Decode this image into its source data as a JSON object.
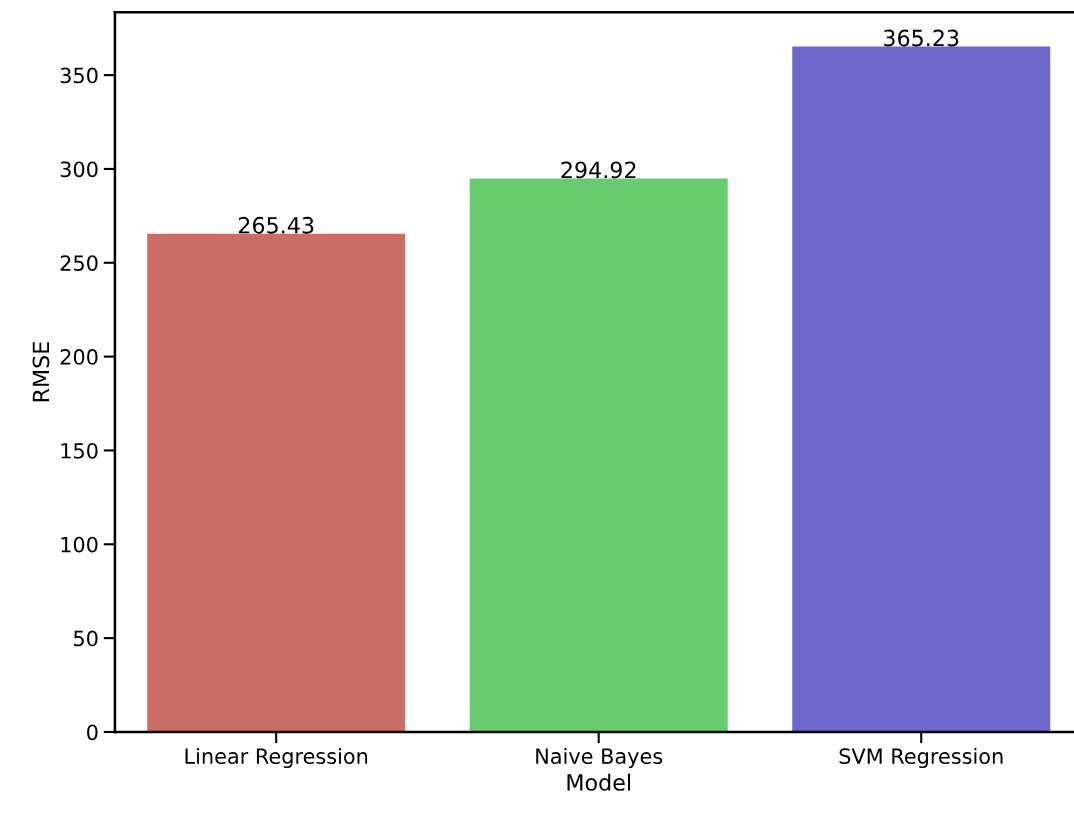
{
  "chart_data": {
    "type": "bar",
    "xlabel": "Model",
    "ylabel": "RMSE",
    "categories": [
      "Linear Regression",
      "Naive Bayes",
      "SVM Regression"
    ],
    "values": [
      265.43,
      294.92,
      365.23
    ],
    "colors": [
      "#c96d65",
      "#68cb70",
      "#6e67cb"
    ],
    "ylim": [
      0,
      383.5
    ],
    "yticks": [
      0,
      50,
      100,
      150,
      200,
      250,
      300,
      350
    ],
    "data_labels": true,
    "grid": false,
    "legend": false
  }
}
